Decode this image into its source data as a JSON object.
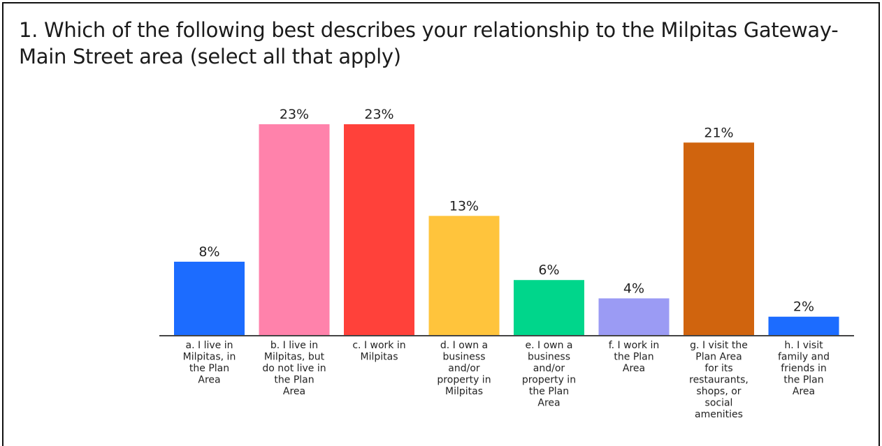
{
  "title": "1. Which of the following best describes your relationship to the Milpitas Gateway-Main Street area (select all that apply)",
  "chart_data": {
    "type": "bar",
    "title": "1. Which of the following best describes your relationship to the Milpitas Gateway-Main Street area (select all that apply)",
    "xlabel": "",
    "ylabel": "",
    "ylim": [
      0,
      23
    ],
    "grid": false,
    "categories": [
      "a. I live in Milpitas, in the Plan Area",
      "b. I live in Milpitas, but do not live in the Plan Area",
      "c. I work in Milpitas",
      "d. I own a business and/or property in Milpitas",
      "e. I own a business and/or property in the Plan Area",
      "f. I work in the Plan Area",
      "g. I visit the Plan Area for its restaurants, shops, or social amenities",
      "h. I visit family and friends in the Plan Area"
    ],
    "category_lines": [
      [
        "a. I live in",
        "Milpitas, in",
        "the Plan",
        "Area"
      ],
      [
        "b. I live in",
        "Milpitas, but",
        "do not live in",
        "the Plan",
        "Area"
      ],
      [
        "c. I work in",
        "Milpitas"
      ],
      [
        "d. I own a",
        "business",
        "and/or",
        "property in",
        "Milpitas"
      ],
      [
        "e. I own a",
        "business",
        "and/or",
        "property in",
        "the Plan",
        "Area"
      ],
      [
        "f. I work in",
        "the Plan",
        "Area"
      ],
      [
        "g. I visit the",
        "Plan Area",
        "for its",
        "restaurants,",
        "shops, or",
        "social",
        "amenities"
      ],
      [
        "h. I visit",
        "family and",
        "friends in",
        "the Plan",
        "Area"
      ]
    ],
    "values": [
      8,
      23,
      23,
      13,
      6,
      4,
      21,
      2
    ],
    "value_labels": [
      "8%",
      "23%",
      "23%",
      "13%",
      "6%",
      "4%",
      "21%",
      "2%"
    ],
    "colors": [
      "#1c6cff",
      "#ff82ab",
      "#ff413a",
      "#ffc43c",
      "#00d68b",
      "#9b9bf4",
      "#d0640e",
      "#1c6cff"
    ]
  }
}
